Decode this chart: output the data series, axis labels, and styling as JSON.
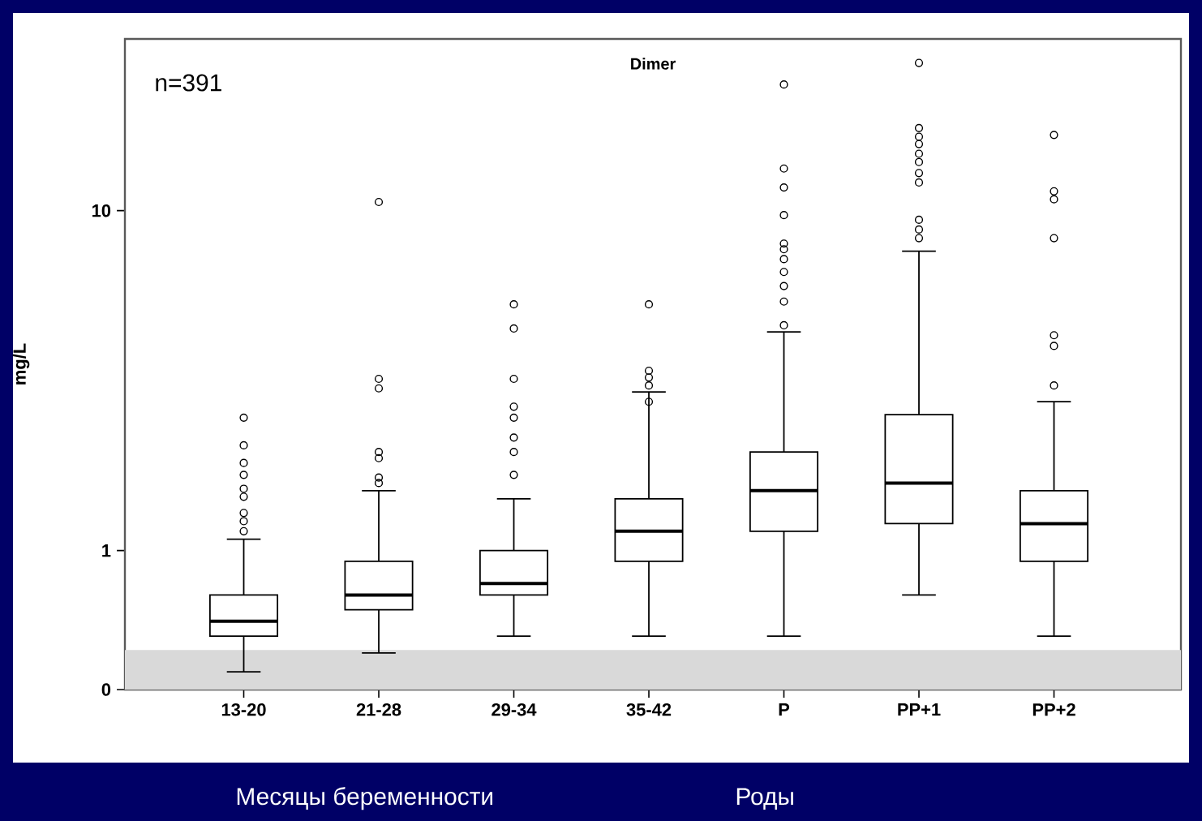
{
  "chart_data": {
    "type": "box",
    "title": "Dimer",
    "ylabel": "mg/L",
    "annotations": [
      "n=391",
      "Месяцы беременности",
      "Роды"
    ],
    "categories": [
      "13-20",
      "21-28",
      "29-34",
      "35-42",
      "P",
      "PP+1",
      "PP+2"
    ],
    "boxes": [
      {
        "low": 0.44,
        "q1": 0.56,
        "median": 0.62,
        "q3": 0.74,
        "high": 1.08,
        "outliers": [
          1.14,
          1.22,
          1.29,
          1.44,
          1.52,
          1.67,
          1.81,
          2.04,
          2.46
        ]
      },
      {
        "low": 0.5,
        "q1": 0.67,
        "median": 0.74,
        "q3": 0.93,
        "high": 1.5,
        "outliers": [
          1.58,
          1.64,
          1.87,
          1.95,
          3.0,
          3.2,
          10.6
        ]
      },
      {
        "low": 0.56,
        "q1": 0.74,
        "median": 0.8,
        "q3": 1.0,
        "high": 1.42,
        "outliers": [
          1.67,
          1.95,
          2.15,
          2.46,
          2.65,
          3.2,
          4.5,
          5.3
        ]
      },
      {
        "low": 0.56,
        "q1": 0.93,
        "median": 1.14,
        "q3": 1.42,
        "high": 2.93,
        "outliers": [
          2.74,
          3.06,
          3.23,
          3.38,
          5.3
        ]
      },
      {
        "low": 0.56,
        "q1": 1.14,
        "median": 1.5,
        "q3": 1.95,
        "high": 4.4,
        "outliers": [
          4.6,
          5.4,
          6.0,
          6.6,
          7.2,
          7.7,
          8.0,
          9.7,
          11.7,
          13.3,
          23.5
        ]
      },
      {
        "low": 0.74,
        "q1": 1.2,
        "median": 1.58,
        "q3": 2.51,
        "high": 7.6,
        "outliers": [
          8.3,
          8.8,
          9.4,
          12.1,
          12.9,
          13.9,
          14.7,
          15.7,
          16.5,
          17.5,
          27.2
        ]
      },
      {
        "low": 0.56,
        "q1": 0.93,
        "median": 1.2,
        "q3": 1.5,
        "high": 2.74,
        "outliers": [
          3.06,
          4.0,
          4.3,
          8.3,
          10.8,
          11.4,
          16.7
        ]
      }
    ],
    "log": "y",
    "ylim": [
      0.39,
      32
    ],
    "yticks": [
      {
        "value": 0.39,
        "label": "0"
      },
      1,
      10
    ],
    "bands": [
      {
        "axis": "y",
        "from": 0.39,
        "to": 0.51,
        "color": "#d9d9d9"
      }
    ],
    "marker": "circle"
  }
}
